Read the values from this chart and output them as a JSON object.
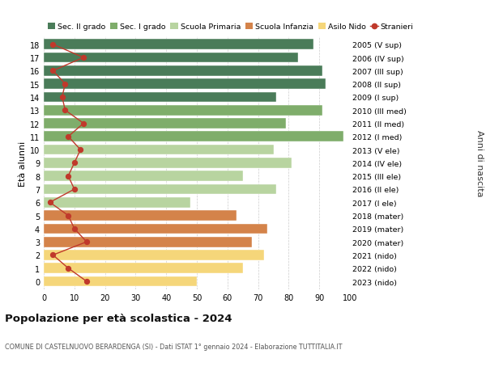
{
  "ages": [
    18,
    17,
    16,
    15,
    14,
    13,
    12,
    11,
    10,
    9,
    8,
    7,
    6,
    5,
    4,
    3,
    2,
    1,
    0
  ],
  "right_labels": [
    "2005 (V sup)",
    "2006 (IV sup)",
    "2007 (III sup)",
    "2008 (II sup)",
    "2009 (I sup)",
    "2010 (III med)",
    "2011 (II med)",
    "2012 (I med)",
    "2013 (V ele)",
    "2014 (IV ele)",
    "2015 (III ele)",
    "2016 (II ele)",
    "2017 (I ele)",
    "2018 (mater)",
    "2019 (mater)",
    "2020 (mater)",
    "2021 (nido)",
    "2022 (nido)",
    "2023 (nido)"
  ],
  "bar_values": [
    88,
    83,
    91,
    92,
    76,
    91,
    79,
    98,
    75,
    81,
    65,
    76,
    48,
    63,
    73,
    68,
    72,
    65,
    50
  ],
  "stranieri": [
    3,
    13,
    3,
    7,
    6,
    7,
    13,
    8,
    12,
    10,
    8,
    10,
    2,
    8,
    10,
    14,
    3,
    8,
    14
  ],
  "bar_colors": [
    "#4a7c59",
    "#4a7c59",
    "#4a7c59",
    "#4a7c59",
    "#4a7c59",
    "#7fad6b",
    "#7fad6b",
    "#7fad6b",
    "#b8d4a0",
    "#b8d4a0",
    "#b8d4a0",
    "#b8d4a0",
    "#b8d4a0",
    "#d4834a",
    "#d4834a",
    "#d4834a",
    "#f5d67a",
    "#f5d67a",
    "#f5d67a"
  ],
  "legend_labels": [
    "Sec. II grado",
    "Sec. I grado",
    "Scuola Primaria",
    "Scuola Infanzia",
    "Asilo Nido",
    "Stranieri"
  ],
  "legend_colors": [
    "#4a7c59",
    "#7fad6b",
    "#b8d4a0",
    "#d4834a",
    "#f5d67a",
    "#c0392b"
  ],
  "stranieri_color": "#c0392b",
  "title": "Popolazione per età scolastica - 2024",
  "subtitle": "COMUNE DI CASTELNUOVO BERARDENGA (SI) - Dati ISTAT 1° gennaio 2024 - Elaborazione TUTTITALIA.IT",
  "ylabel": "Età alunni",
  "right_ylabel": "Anni di nascita",
  "xlim": [
    0,
    100
  ],
  "xticks": [
    0,
    10,
    20,
    30,
    40,
    50,
    60,
    70,
    80,
    90,
    100
  ],
  "bg_color": "#ffffff",
  "grid_color": "#cccccc",
  "bar_height": 0.78
}
